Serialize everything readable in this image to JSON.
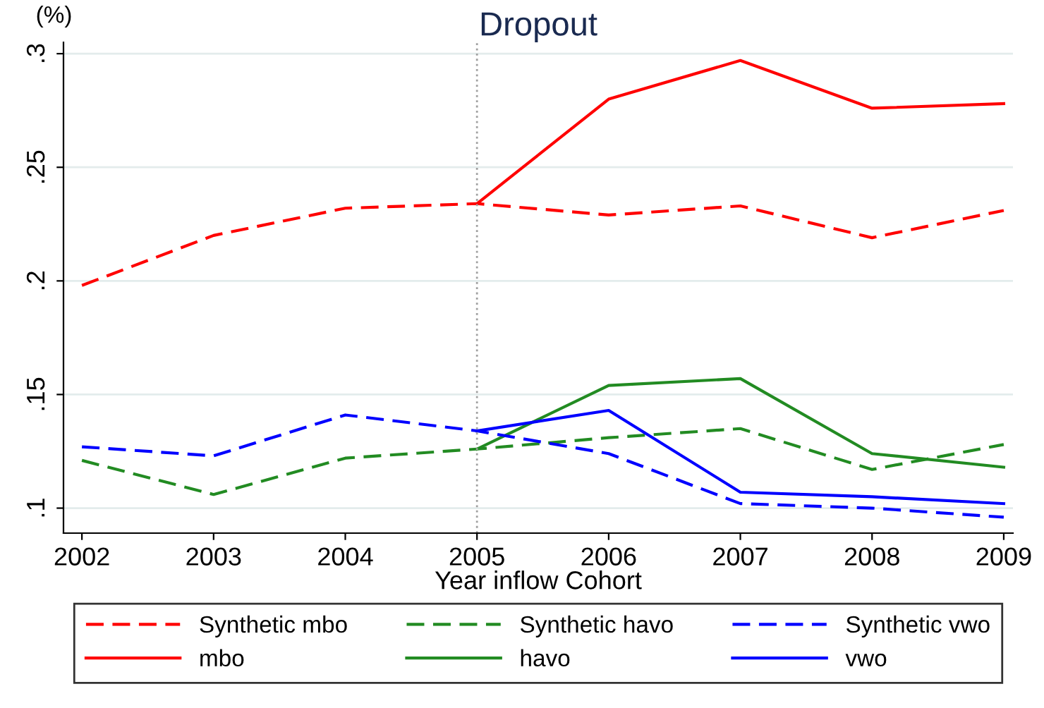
{
  "chart_data": {
    "type": "line",
    "title": "Dropout",
    "xlabel": "Year inflow Cohort",
    "ylabel": "(%)",
    "x": [
      2002,
      2003,
      2004,
      2005,
      2006,
      2007,
      2008,
      2009
    ],
    "series": [
      {
        "name": "Synthetic mbo",
        "color": "#ff0000",
        "line_style": "dashed",
        "values": [
          0.198,
          0.22,
          0.232,
          0.234,
          0.229,
          0.233,
          0.219,
          0.231
        ]
      },
      {
        "name": "mbo",
        "color": "#ff0000",
        "line_style": "solid",
        "values": [
          null,
          null,
          null,
          0.234,
          0.28,
          0.297,
          0.276,
          0.278
        ]
      },
      {
        "name": "Synthetic havo",
        "color": "#228b22",
        "line_style": "dashed",
        "values": [
          0.121,
          0.106,
          0.122,
          0.126,
          0.131,
          0.135,
          0.117,
          0.128
        ]
      },
      {
        "name": "havo",
        "color": "#228b22",
        "line_style": "solid",
        "values": [
          null,
          null,
          null,
          0.126,
          0.154,
          0.157,
          0.124,
          0.118
        ]
      },
      {
        "name": "Synthetic vwo",
        "color": "#0000ff",
        "line_style": "dashed",
        "values": [
          0.127,
          0.123,
          0.141,
          0.134,
          0.124,
          0.102,
          0.1,
          0.096
        ]
      },
      {
        "name": "vwo",
        "color": "#0000ff",
        "line_style": "solid",
        "values": [
          null,
          null,
          null,
          0.134,
          0.143,
          0.107,
          0.105,
          0.102
        ]
      }
    ],
    "xlim": [
      2001.86,
      2009.07
    ],
    "ylim": [
      0.089,
      0.305
    ],
    "xticks": [
      2002,
      2003,
      2004,
      2005,
      2006,
      2007,
      2008,
      2009
    ],
    "yticks": [
      {
        "value": 0.1,
        "label": ".1"
      },
      {
        "value": 0.15,
        "label": ".15"
      },
      {
        "value": 0.2,
        "label": ".2"
      },
      {
        "value": 0.25,
        "label": ".25"
      },
      {
        "value": 0.3,
        "label": ".3"
      }
    ],
    "ref_lines": [
      {
        "axis": "x",
        "value": 2005,
        "color": "#a0a0a0",
        "line_style": "dotted"
      }
    ],
    "grid": "y",
    "legend": "bottom",
    "marker": "none"
  }
}
